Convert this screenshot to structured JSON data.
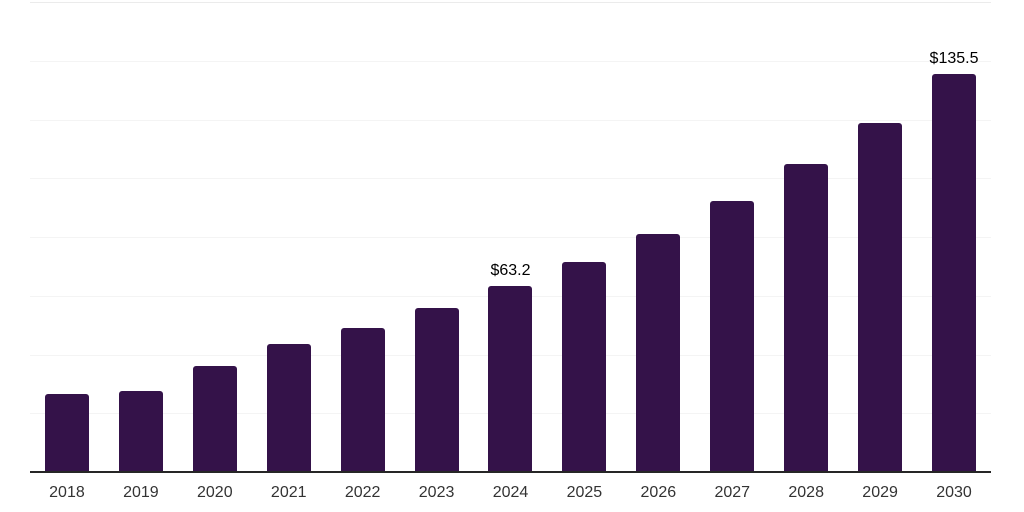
{
  "chart": {
    "background_color": "#ffffff",
    "bar_color": "#341249",
    "axis_line_color": "#262626",
    "gridline_color": "#f4f4f4",
    "top_gridline_color": "#ebebeb",
    "value_label_color": "#000000",
    "tick_label_color": "#333333"
  },
  "chart_data": {
    "type": "bar",
    "title": "",
    "xlabel": "",
    "ylabel": "",
    "categories": [
      "2018",
      "2019",
      "2020",
      "2021",
      "2022",
      "2023",
      "2024",
      "2025",
      "2026",
      "2027",
      "2028",
      "2029",
      "2030"
    ],
    "values": [
      26.5,
      27.7,
      36.0,
      43.7,
      49.0,
      55.8,
      63.2,
      71.6,
      81.0,
      92.2,
      104.8,
      118.8,
      135.5
    ],
    "value_labels": {
      "2024": "$63.2",
      "2030": "$135.5"
    },
    "ylim": [
      0,
      160
    ],
    "gridline_interval": 20,
    "grid": true,
    "legend": "none",
    "y_axis_tick_labels_visible": false
  }
}
